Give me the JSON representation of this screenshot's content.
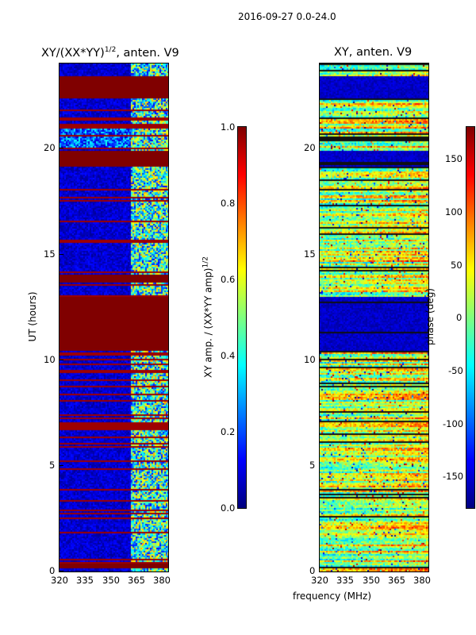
{
  "suptitle": "2016-09-27 0.0-24.0",
  "chart_data": [
    {
      "type": "heatmap",
      "title": "XY/(XX*YY)",
      "title_exponent": "1/2",
      "title_suffix": ", anten. V9",
      "xlabel": "frequency (MHz)",
      "ylabel": "UT (hours)",
      "xlim": [
        320,
        383
      ],
      "ylim": [
        0,
        24
      ],
      "xticks": [
        "320",
        "335",
        "350",
        "365",
        "380"
      ],
      "yticks": [
        "0",
        "5",
        "10",
        "15",
        "20"
      ],
      "colorbar": {
        "label": "XY amp. / (XX*YY amp)",
        "label_exponent": "1/2",
        "range": [
          0.0,
          1.0
        ],
        "ticks": [
          "0.0",
          "0.2",
          "0.4",
          "0.6",
          "0.8",
          "1.0"
        ],
        "colormap": "jet"
      },
      "saturated_bands_hours": [
        [
          0.2,
          0.4
        ],
        [
          10.5,
          13.0
        ],
        [
          13.7,
          14.1
        ],
        [
          19.2,
          19.9
        ],
        [
          22.4,
          23.4
        ]
      ],
      "noisy_band_hours": [
        [
          20.1,
          21.2
        ]
      ],
      "high_freq_segment_MHz": [
        361,
        383
      ]
    },
    {
      "type": "heatmap",
      "title": "XY, anten. V9",
      "xlabel": "frequency (MHz)",
      "ylabel": "",
      "xlim": [
        320,
        383
      ],
      "ylim": [
        0,
        24
      ],
      "xticks": [
        "320",
        "335",
        "350",
        "365",
        "380"
      ],
      "yticks": [
        "0",
        "5",
        "10",
        "15",
        "20"
      ],
      "colorbar": {
        "label": "phase (deg)",
        "range": [
          -180,
          180
        ],
        "ticks": [
          "-150",
          "-100",
          "-50",
          "0",
          "50",
          "100",
          "150"
        ],
        "colormap": "jet"
      },
      "low_bands_hours": [
        [
          10.5,
          13.0
        ],
        [
          19.2,
          19.9
        ],
        [
          22.4,
          23.4
        ]
      ]
    }
  ]
}
